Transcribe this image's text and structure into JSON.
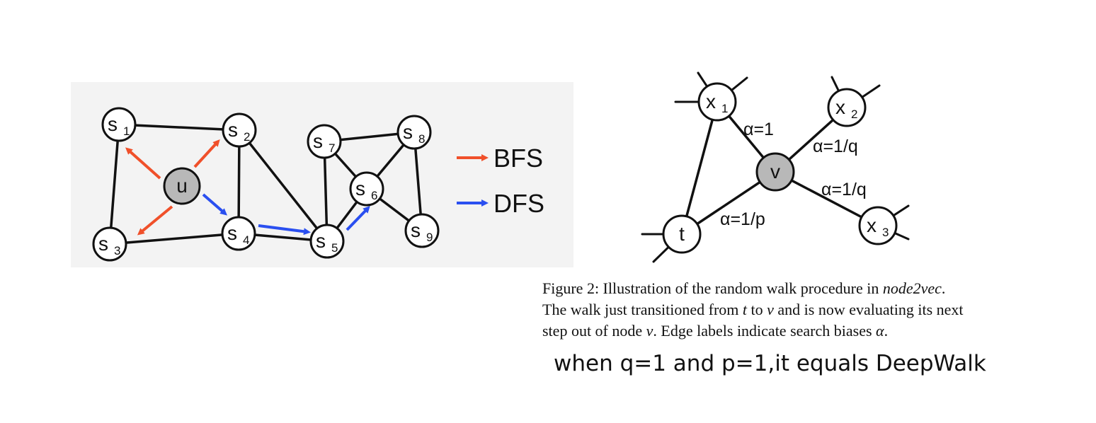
{
  "left_diagram": {
    "nodes": [
      {
        "id": "u",
        "letter": "u",
        "sub": ""
      },
      {
        "id": "s1",
        "letter": "s",
        "sub": "1"
      },
      {
        "id": "s2",
        "letter": "s",
        "sub": "2"
      },
      {
        "id": "s3",
        "letter": "s",
        "sub": "3"
      },
      {
        "id": "s4",
        "letter": "s",
        "sub": "4"
      },
      {
        "id": "s5",
        "letter": "s",
        "sub": "5"
      },
      {
        "id": "s6",
        "letter": "s",
        "sub": "6"
      },
      {
        "id": "s7",
        "letter": "s",
        "sub": "7"
      },
      {
        "id": "s8",
        "letter": "s",
        "sub": "8"
      },
      {
        "id": "s9",
        "letter": "s",
        "sub": "9"
      }
    ],
    "edges": [
      [
        "s1",
        "s2"
      ],
      [
        "s1",
        "s3"
      ],
      [
        "s2",
        "s4"
      ],
      [
        "s2",
        "s5"
      ],
      [
        "s3",
        "s4"
      ],
      [
        "s4",
        "s5"
      ],
      [
        "s5",
        "s7"
      ],
      [
        "s5",
        "s6"
      ],
      [
        "s7",
        "s6"
      ],
      [
        "s7",
        "s8"
      ],
      [
        "s8",
        "s6"
      ],
      [
        "s8",
        "s9"
      ],
      [
        "s6",
        "s9"
      ],
      [
        "u",
        "s1"
      ],
      [
        "u",
        "s2"
      ],
      [
        "u",
        "s3"
      ],
      [
        "u",
        "s4"
      ]
    ],
    "legend": {
      "bfs_label": "BFS",
      "dfs_label": "DFS",
      "bfs_color": "#f0502a",
      "dfs_color": "#2a4ff0"
    }
  },
  "right_diagram": {
    "nodes": [
      {
        "id": "v",
        "letter": "v",
        "sub": ""
      },
      {
        "id": "t",
        "letter": "t",
        "sub": ""
      },
      {
        "id": "x1",
        "letter": "x",
        "sub": "1"
      },
      {
        "id": "x2",
        "letter": "x",
        "sub": "2"
      },
      {
        "id": "x3",
        "letter": "x",
        "sub": "3"
      }
    ],
    "edge_labels": {
      "x1_v": "α=1",
      "x2_v": "α=1/q",
      "x3_v": "α=1/q",
      "t_v": "α=1/p"
    }
  },
  "caption": {
    "line1_a": "Figure 2:  Illustration of the random walk procedure in ",
    "line1_b": "node2vec",
    "line1_c": ".",
    "line2_a": "The walk just transitioned from ",
    "line2_t": "t",
    "line2_b": " to ",
    "line2_v": "v",
    "line2_c": " and is now evaluating its next",
    "line3_a": "step out of node ",
    "line3_v": "v",
    "line3_b": ". Edge labels indicate search biases ",
    "line3_alpha": "α",
    "line3_c": "."
  },
  "note": "when q=1 and p=1,it equals DeepWalk",
  "colors": {
    "panel_bg": "#f3f3f3",
    "center_node": "#b8b8b8"
  }
}
